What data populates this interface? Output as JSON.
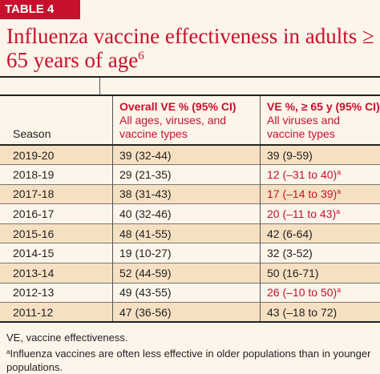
{
  "label": "TABLE 4",
  "title": {
    "text": "Influenza vaccine effectiveness in adults ≥ 65 years of age",
    "ref": "6"
  },
  "columns": [
    {
      "title": "Season",
      "subtitle": ""
    },
    {
      "title": "Overall VE % (95% CI)",
      "subtitle": "All ages, viruses, and vaccine types"
    },
    {
      "title": "VE %, ≥ 65 y (95% CI)",
      "subtitle": "All viruses and vaccine types"
    }
  ],
  "rows": [
    {
      "season": "2019-20",
      "overall": "39 (32-44)",
      "older": "39 (9-59)",
      "older_highlight": false,
      "older_note": ""
    },
    {
      "season": "2018-19",
      "overall": "29 (21-35)",
      "older": "12 (–31 to 40)",
      "older_highlight": true,
      "older_note": "a"
    },
    {
      "season": "2017-18",
      "overall": "38 (31-43)",
      "older": "17 (–14 to 39)",
      "older_highlight": true,
      "older_note": "a"
    },
    {
      "season": "2016-17",
      "overall": "40 (32-46)",
      "older": "20 (–11 to 43)",
      "older_highlight": true,
      "older_note": "a"
    },
    {
      "season": "2015-16",
      "overall": "48 (41-55)",
      "older": "42 (6-64)",
      "older_highlight": false,
      "older_note": ""
    },
    {
      "season": "2014-15",
      "overall": "19 (10-27)",
      "older": "32 (3-52)",
      "older_highlight": false,
      "older_note": ""
    },
    {
      "season": "2013-14",
      "overall": "52 (44-59)",
      "older": "50 (16-71)",
      "older_highlight": false,
      "older_note": ""
    },
    {
      "season": "2012-13",
      "overall": "49 (43-55)",
      "older": "26 (–10 to 50)",
      "older_highlight": true,
      "older_note": "a"
    },
    {
      "season": "2011-12",
      "overall": "47 (36-56)",
      "older": "43 (–18 to 72)",
      "older_highlight": false,
      "older_note": ""
    }
  ],
  "footnotes": {
    "abbrev": "VE, vaccine effectiveness.",
    "note_marker": "a",
    "note_text": "Influenza vaccines are often less effective in older populations than in younger populations."
  },
  "colors": {
    "accent": "#c8102e",
    "band": "#f6e0c2",
    "background": "#fdf5ea"
  }
}
